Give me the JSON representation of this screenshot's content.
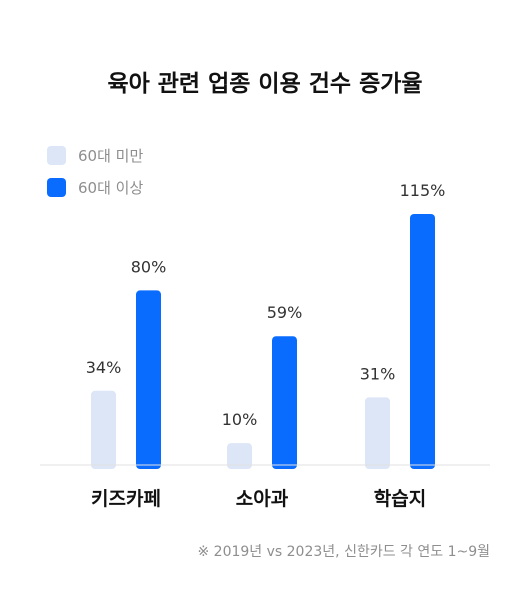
{
  "chart_data": {
    "type": "bar",
    "title": "육아 관련 업종 이용 건수 증가율",
    "categories": [
      "키즈카페",
      "소아과",
      "학습지"
    ],
    "series": [
      {
        "name": "60대 미만",
        "values": [
          34,
          10,
          31
        ],
        "labels": [
          "34%",
          "10%",
          "31%"
        ],
        "color": "#dce6f7"
      },
      {
        "name": "60대 이상",
        "values": [
          80,
          59,
          115
        ],
        "labels": [
          "80%",
          "59%",
          "115%"
        ],
        "color": "#0a6cff"
      }
    ],
    "ylim": [
      0,
      115
    ],
    "grid": false,
    "legend": "top-left",
    "footnote": "※ 2019년 vs 2023년, 신한카드 각 연도 1~9월"
  }
}
